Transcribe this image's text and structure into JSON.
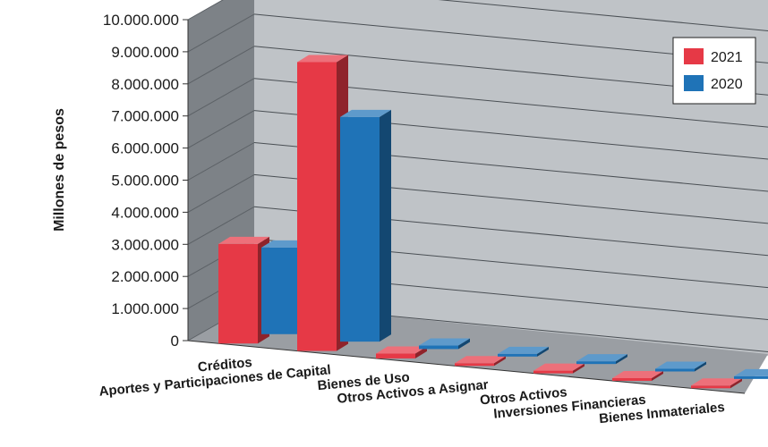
{
  "chart_data": {
    "type": "bar",
    "categories": [
      "Créditos",
      "Aportes y Participaciones de Capital",
      "Bienes de Uso",
      "Otros Activos a Asignar",
      "Otros Activos",
      "Inversiones Financieras",
      "Bienes Inmateriales"
    ],
    "series": [
      {
        "name": "2021",
        "color": "#e63946",
        "values": [
          3100000,
          9000000,
          150000,
          50000,
          40000,
          30000,
          20000
        ]
      },
      {
        "name": "2020",
        "color": "#1f73b7",
        "values": [
          2700000,
          7000000,
          110000,
          60000,
          50000,
          40000,
          30000
        ]
      }
    ],
    "ylabel": "Millones de pesos",
    "yticks": [
      "0",
      "1.000.000",
      "2.000.000",
      "3.000.000",
      "4.000.000",
      "5.000.000",
      "6.000.000",
      "7.000.000",
      "8.000.000",
      "9.000.000",
      "10.000.000"
    ],
    "ylim": [
      0,
      10000000
    ],
    "grid": true,
    "legend_position": "top-right",
    "style": "3d"
  }
}
